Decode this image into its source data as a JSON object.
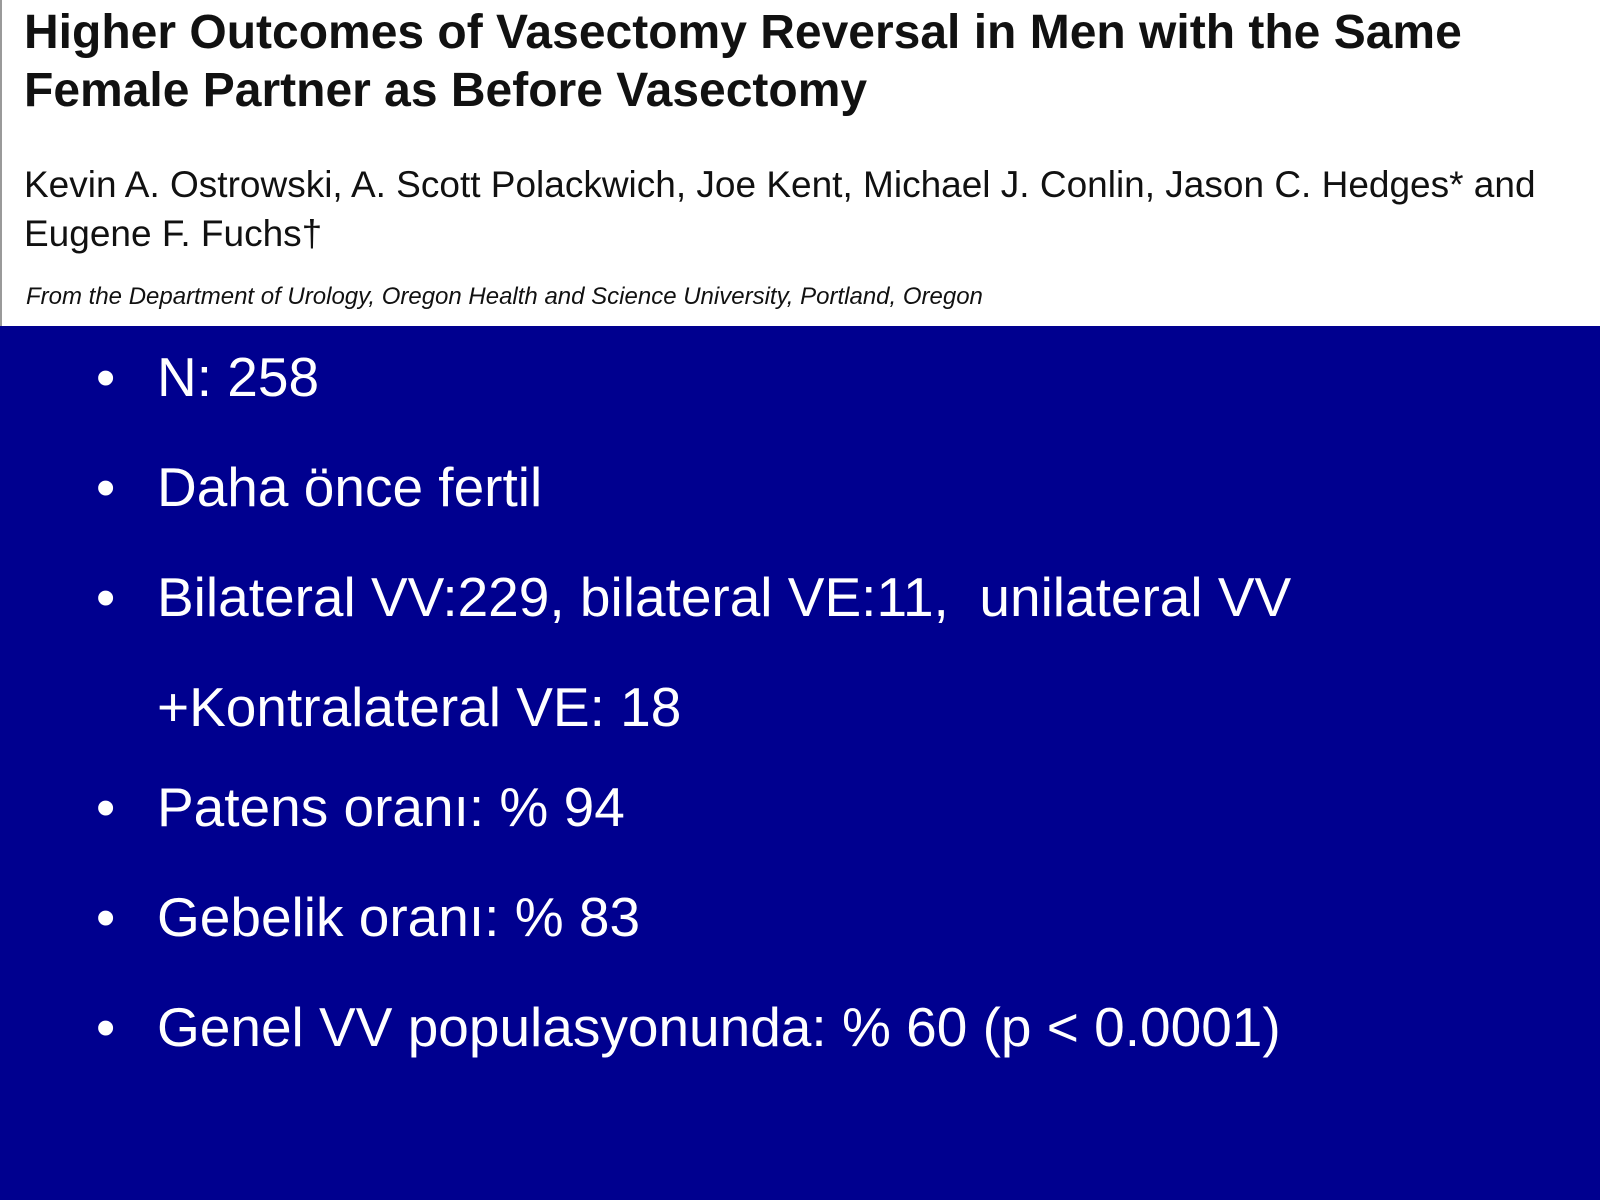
{
  "paper": {
    "title": "Higher Outcomes of Vasectomy Reversal in Men with the Same Female Partner as Before Vasectomy",
    "authors": "Kevin A. Ostrowski, A. Scott Polackwich, Joe Kent, Michael J. Conlin, Jason C. Hedges* and Eugene F. Fuchs†",
    "affiliation": "From the Department of Urology, Oregon Health and Science University, Portland, Oregon"
  },
  "bullet_symbol": "•",
  "bullets": [
    "N: 258",
    "Daha önce fertil",
    "Bilateral VV:229, bilateral VE:11,  unilateral VV +Kontralateral VE: 18",
    "Patens oranı: % 94",
    "Gebelik oranı: % 83",
    "Genel VV populasyonunda: % 60 (p < 0.0001)"
  ],
  "colors": {
    "slide_background": "#00008f",
    "header_background": "#ffffff",
    "header_text": "#111111",
    "bullet_text": "#ffffff"
  }
}
